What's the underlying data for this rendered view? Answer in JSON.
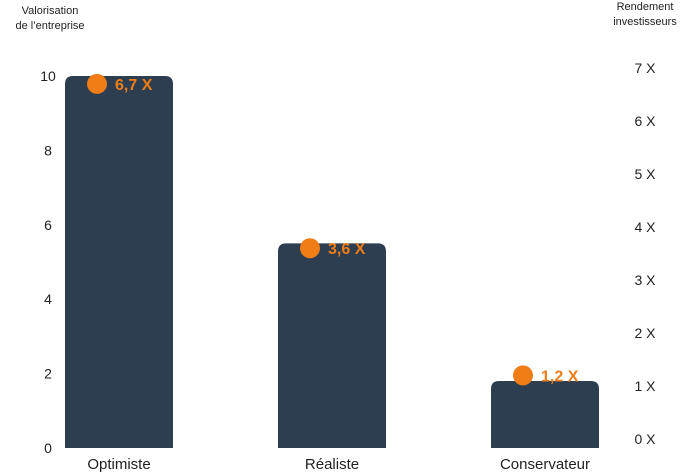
{
  "chart_data": {
    "type": "bar",
    "title": "",
    "ylabel": "Valorisation\nde l’entreprise",
    "y2label": "Rendement\ninvestisseurs",
    "categories": [
      "Optimiste",
      "Réaliste",
      "Conservateur"
    ],
    "series": [
      {
        "name": "",
        "axis": "left",
        "values": [
          10,
          5.5,
          1.8
        ],
        "color": "#2d3e50"
      },
      {
        "name": "",
        "axis": "right",
        "values": [
          6.7,
          3.6,
          1.2
        ],
        "color": "#f07d16"
      }
    ],
    "data_labels": [
      "6,7 X",
      "3,6 X",
      "1,2 X"
    ],
    "ylim": [
      0,
      10
    ],
    "yticks": [
      "0",
      "2",
      "4",
      "6",
      "8",
      "10"
    ],
    "y2lim": [
      0,
      7
    ],
    "y2ticks": [
      "0 X",
      "1 X",
      "2 X",
      "3 X",
      "4 X",
      "5 X",
      "6 X",
      "7 X"
    ],
    "grid": false,
    "legend": "none"
  }
}
